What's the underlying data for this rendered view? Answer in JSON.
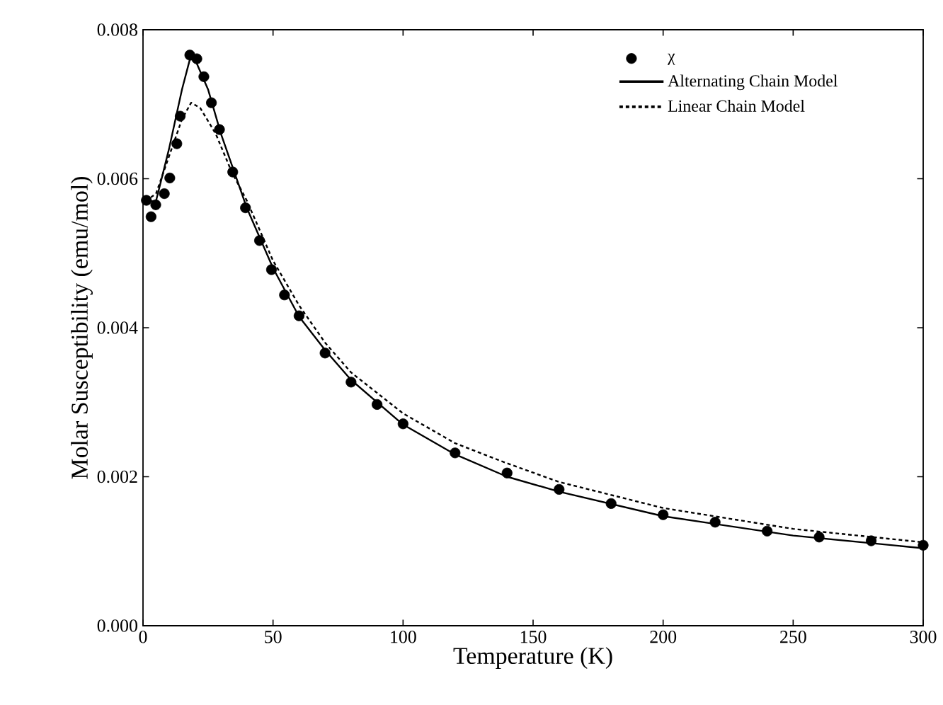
{
  "chart_data": {
    "type": "line",
    "xlabel": "Temperature (K)",
    "ylabel": "Molar Susceptibility (emu/mol)",
    "xlim": [
      0,
      300
    ],
    "xticks": [
      0,
      50,
      100,
      150,
      200,
      250,
      300
    ],
    "ylim": [
      0,
      0.008
    ],
    "yticks": [
      {
        "value": 0,
        "label": "0.000"
      },
      {
        "value": 0.002,
        "label": "0.002"
      },
      {
        "value": 0.004,
        "label": "0.004"
      },
      {
        "value": 0.006,
        "label": "0.006"
      },
      {
        "value": 0.008,
        "label": "0.008"
      }
    ],
    "grid": false,
    "legend": "top right",
    "series": [
      {
        "name": "χ",
        "type": "scatter",
        "marker": "circle",
        "color": "#000000",
        "x": [
          1.3,
          3.1,
          4.9,
          8.2,
          10.3,
          13,
          14.3,
          18,
          20.7,
          23.4,
          26.3,
          29.4,
          34.5,
          39.4,
          44.8,
          49.4,
          54.4,
          60,
          70,
          80,
          90,
          100,
          120,
          140,
          160,
          180,
          200,
          220,
          240,
          260,
          280,
          300
        ],
        "values": [
          0.00571,
          0.00549,
          0.00565,
          0.0058,
          0.00601,
          0.00647,
          0.00684,
          0.00766,
          0.00761,
          0.00737,
          0.00702,
          0.00666,
          0.00609,
          0.00561,
          0.00517,
          0.00478,
          0.00444,
          0.00416,
          0.00366,
          0.00327,
          0.00297,
          0.00271,
          0.00232,
          0.00205,
          0.00183,
          0.00164,
          0.00149,
          0.00139,
          0.00127,
          0.00119,
          0.00114,
          0.00108
        ]
      },
      {
        "name": "Alternating Chain Model",
        "line_style": "solid",
        "color": "#000000",
        "x": [
          1,
          5,
          10,
          15,
          18,
          20,
          25,
          30,
          40,
          50,
          60,
          70,
          80,
          100,
          120,
          140,
          160,
          200,
          250,
          300
        ],
        "values": [
          0.0057,
          0.0057,
          0.0064,
          0.0072,
          0.0076,
          0.0076,
          0.0072,
          0.0066,
          0.0056,
          0.0048,
          0.00415,
          0.0037,
          0.0033,
          0.0027,
          0.0023,
          0.002,
          0.0018,
          0.00147,
          0.00121,
          0.00104
        ]
      },
      {
        "name": "Linear Chain Model",
        "line_style": "dotted",
        "color": "#000000",
        "x": [
          1,
          5,
          10,
          15,
          18.5,
          22,
          28,
          34,
          40,
          50,
          60,
          70,
          80,
          100,
          120,
          140,
          160,
          200,
          250,
          300
        ],
        "values": [
          0.0057,
          0.0058,
          0.0063,
          0.0068,
          0.00702,
          0.00695,
          0.0066,
          0.0061,
          0.0057,
          0.0049,
          0.0043,
          0.0038,
          0.0034,
          0.00285,
          0.00245,
          0.00218,
          0.00193,
          0.00158,
          0.0013,
          0.00112
        ]
      }
    ]
  }
}
